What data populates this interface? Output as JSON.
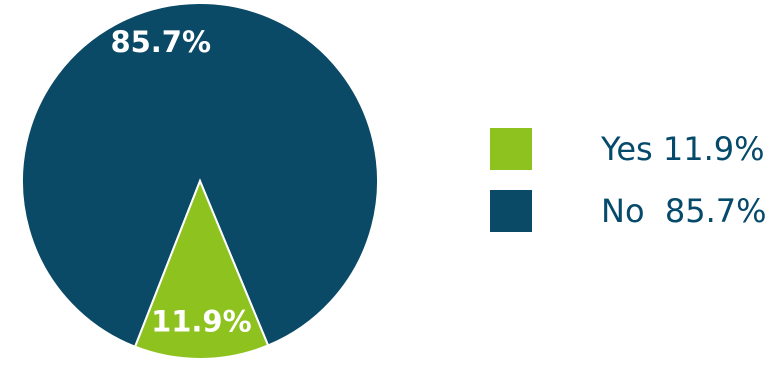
{
  "chart_data": {
    "type": "pie",
    "title": "",
    "slices": [
      {
        "label": "Yes",
        "value": 11.9,
        "display": "11.9%",
        "color": "#8dc21f"
      },
      {
        "label": "No",
        "value": 85.7,
        "display": "85.7%",
        "color": "#0a4a66"
      }
    ],
    "legend": {
      "placement": "right",
      "items": [
        {
          "label": "Yes",
          "value_text": "11.9%",
          "color": "#8dc21f"
        },
        {
          "label": "No",
          "value_text": "85.7%",
          "color": "#0a4a66"
        }
      ]
    }
  }
}
